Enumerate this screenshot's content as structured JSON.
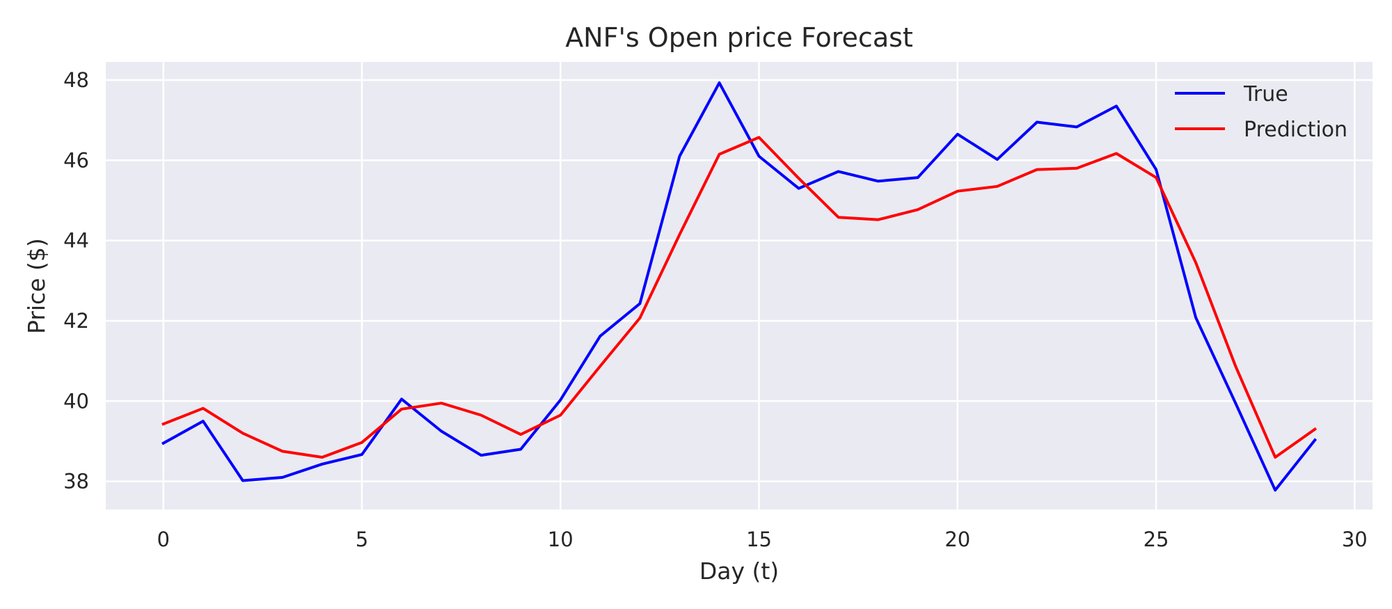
{
  "chart_data": {
    "type": "line",
    "title": "ANF's Open price Forecast",
    "xlabel": "Day (t)",
    "ylabel": "Price ($)",
    "xlim": [
      -1.45,
      30.45
    ],
    "ylim": [
      37.3,
      48.45
    ],
    "xticks": [
      0,
      5,
      10,
      15,
      20,
      25,
      30
    ],
    "yticks": [
      38,
      40,
      42,
      44,
      46,
      48
    ],
    "grid": true,
    "legend_position": "upper right",
    "x": [
      0,
      1,
      2,
      3,
      4,
      5,
      6,
      7,
      8,
      9,
      10,
      11,
      12,
      13,
      14,
      15,
      16,
      17,
      18,
      19,
      20,
      21,
      22,
      23,
      24,
      25,
      26,
      27,
      28,
      29
    ],
    "series": [
      {
        "name": "True",
        "color": "#0000ff",
        "values": [
          38.95,
          39.5,
          38.02,
          38.1,
          38.43,
          38.67,
          40.05,
          39.25,
          38.65,
          38.8,
          40.03,
          41.62,
          42.43,
          46.1,
          47.93,
          46.1,
          45.3,
          45.72,
          45.48,
          45.57,
          46.65,
          46.02,
          46.95,
          46.83,
          47.35,
          45.77,
          42.08,
          39.95,
          37.78,
          39.03
        ]
      },
      {
        "name": "Prediction",
        "color": "#ff0000",
        "values": [
          39.43,
          39.82,
          39.2,
          38.75,
          38.6,
          38.97,
          39.8,
          39.95,
          39.65,
          39.17,
          39.65,
          40.87,
          42.07,
          44.15,
          46.15,
          46.57,
          45.55,
          44.58,
          44.52,
          44.77,
          45.23,
          45.35,
          45.77,
          45.8,
          46.17,
          45.57,
          43.45,
          40.87,
          38.6,
          39.3
        ]
      }
    ]
  }
}
